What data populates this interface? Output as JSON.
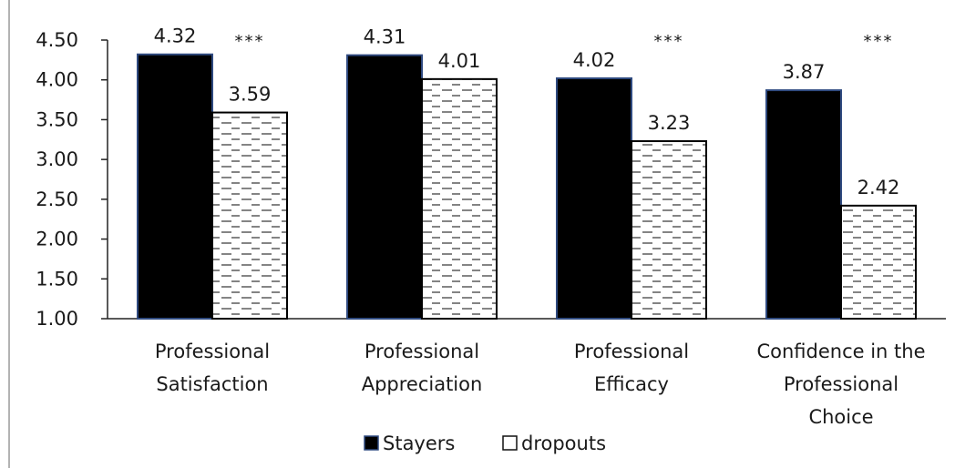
{
  "chart_data": {
    "type": "bar",
    "title": "",
    "xlabel": "",
    "ylabel": "",
    "ylim": [
      1.0,
      4.5
    ],
    "yticks": [
      "1.00",
      "1.50",
      "2.00",
      "2.50",
      "3.00",
      "3.50",
      "4.00",
      "4.50"
    ],
    "grid": false,
    "legend_position": "bottom",
    "categories": [
      [
        "Professional",
        "Satisfaction"
      ],
      [
        "Professional",
        "Appreciation"
      ],
      [
        "Professional",
        "Efficacy"
      ],
      [
        "Confidence in the",
        "Professional",
        "Choice"
      ]
    ],
    "series": [
      {
        "name": "Stayers",
        "values": [
          4.32,
          4.31,
          4.02,
          3.87
        ],
        "labels": [
          "4.32",
          "4.31",
          "4.02",
          "3.87"
        ],
        "color": "#000000",
        "pattern": "solid"
      },
      {
        "name": "dropouts",
        "values": [
          3.59,
          4.01,
          3.23,
          2.42
        ],
        "labels": [
          "3.59",
          "4.01",
          "3.23",
          "2.42"
        ],
        "color": "#ffffff",
        "pattern": "dashed-hatch"
      }
    ],
    "annotations": [
      "***",
      "",
      "***",
      "***"
    ]
  },
  "colors": {
    "stayers": "#000000",
    "stayers_outline": "#2f4a80",
    "dropouts_fill": "#ffffff",
    "hatch": "#555555",
    "axis": "#222222"
  }
}
